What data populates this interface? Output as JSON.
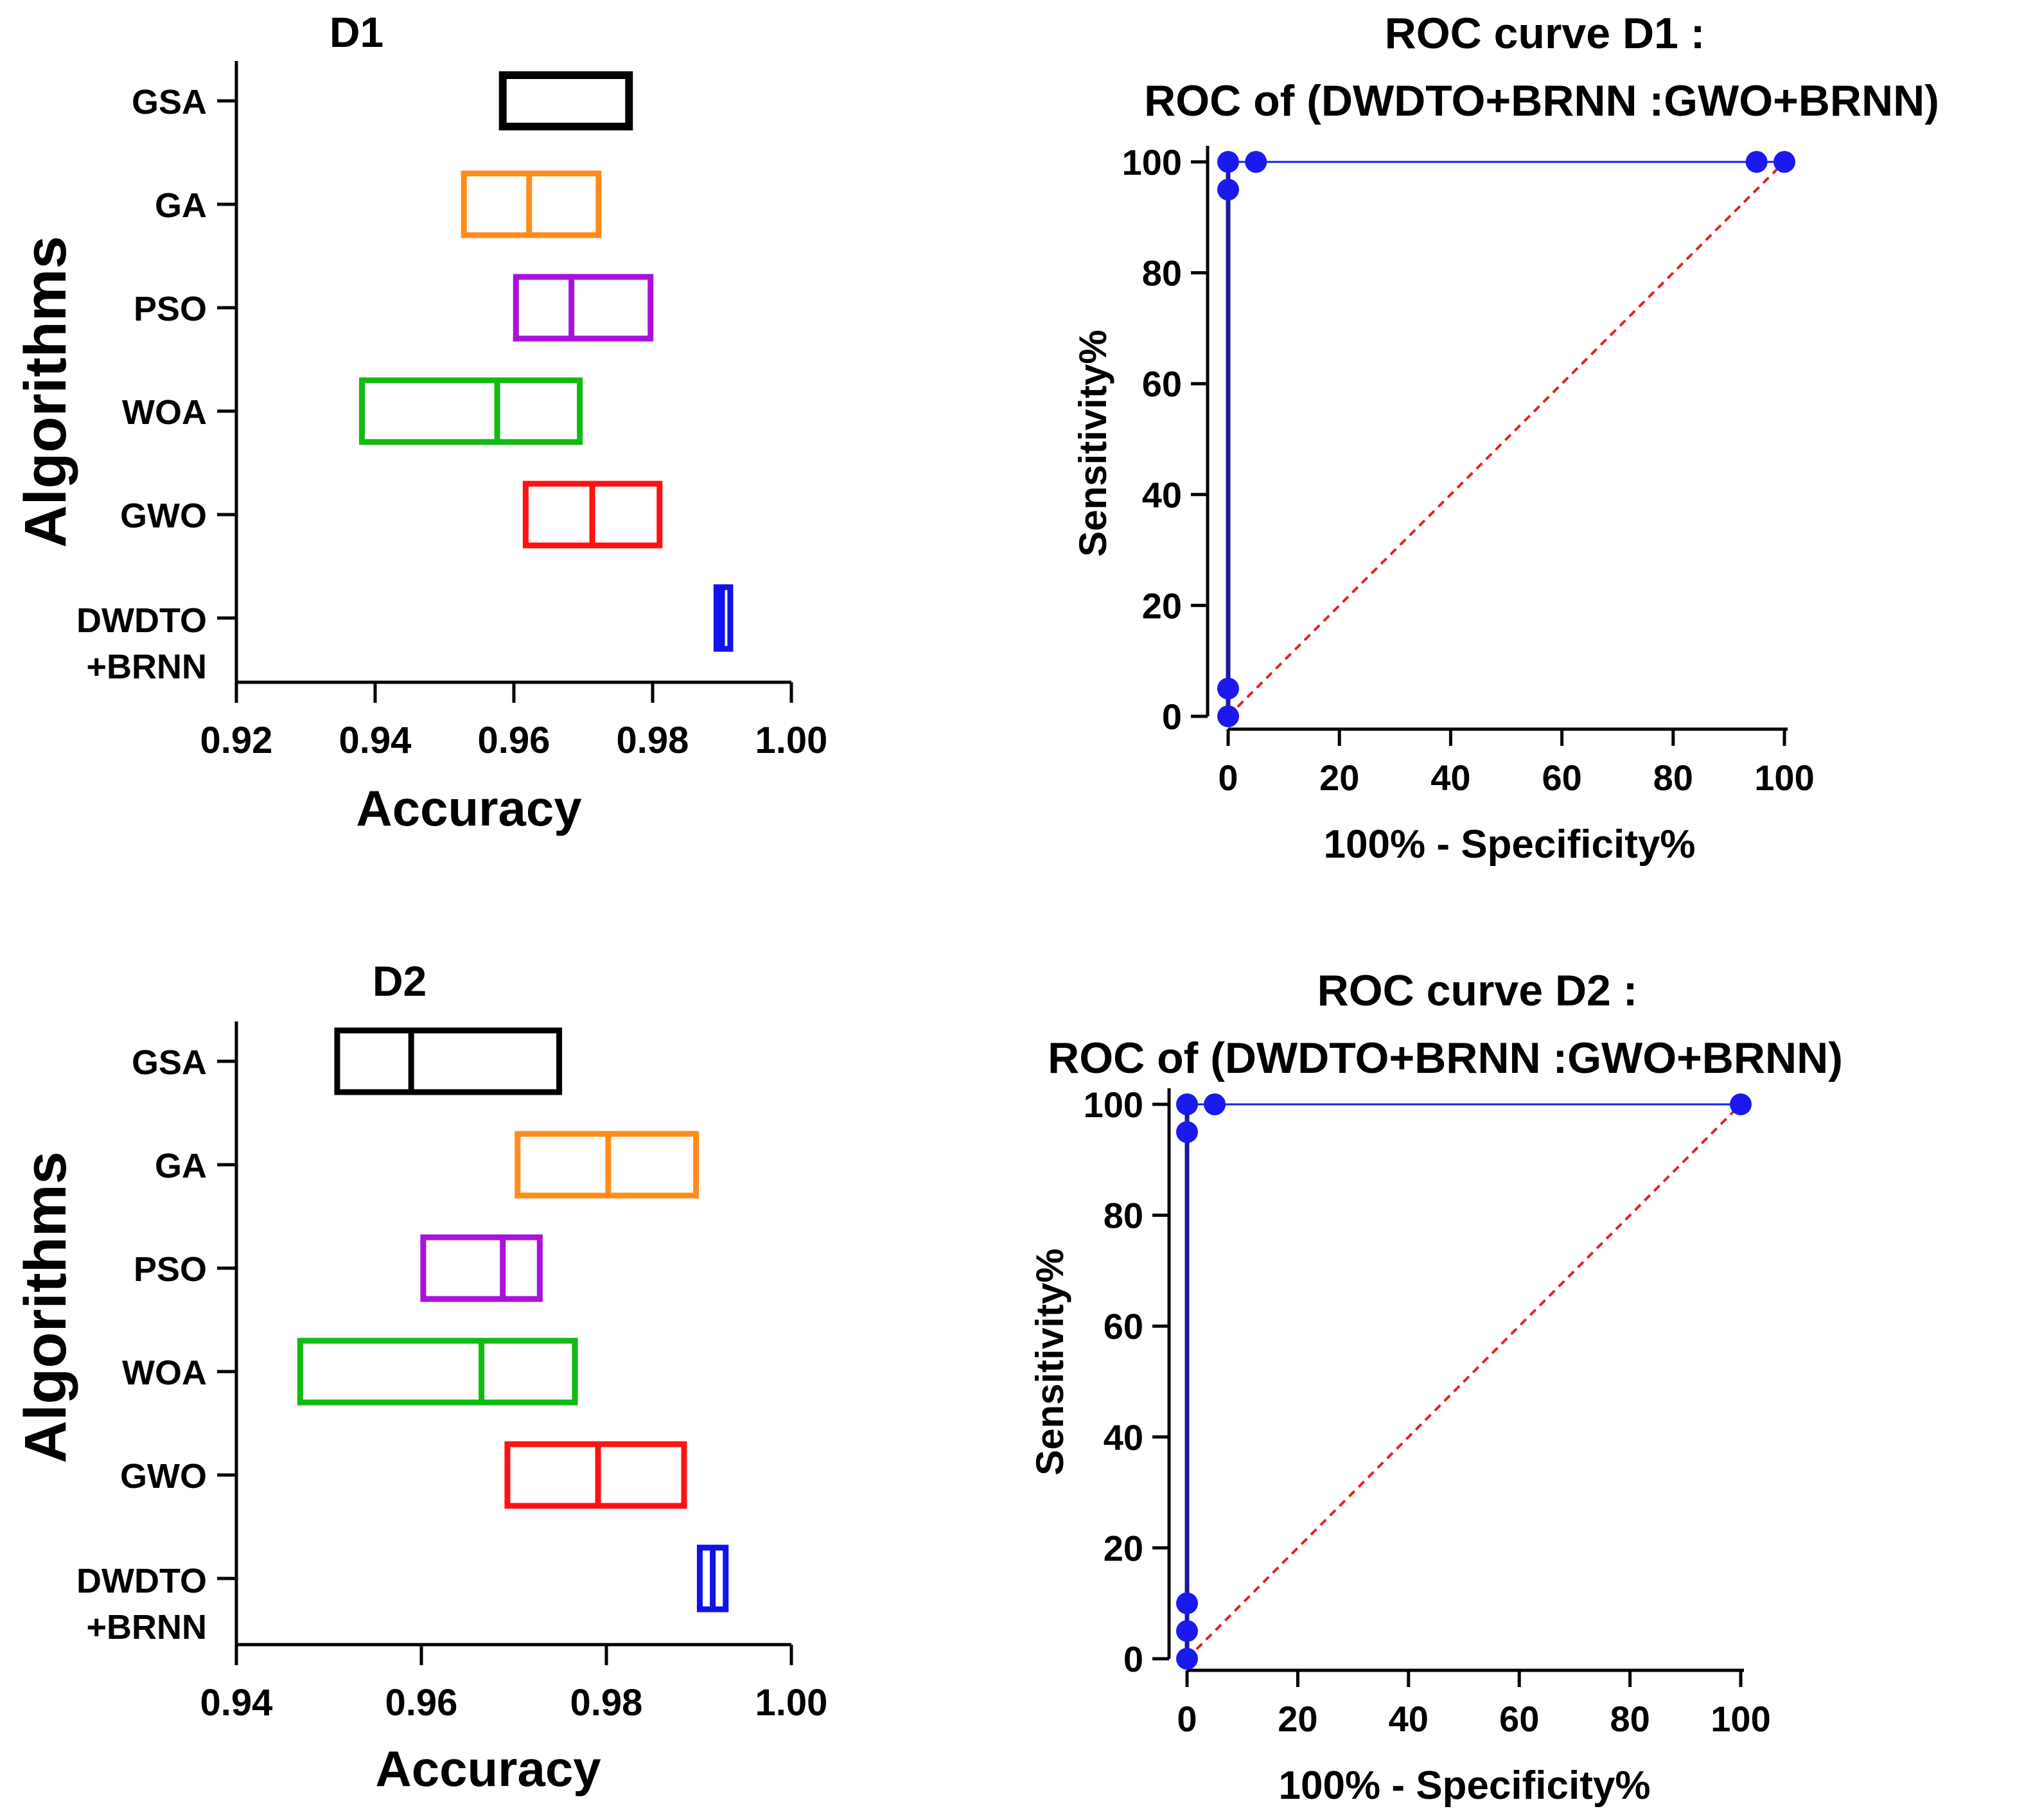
{
  "chart_data": [
    {
      "type": "box",
      "title": "D1",
      "xlabel": "Accuracy",
      "ylabel": "Algorithms",
      "xlim": [
        0.92,
        1.0
      ],
      "xticks": [
        "0.92",
        "0.94",
        "0.96",
        "0.98",
        "1.00"
      ],
      "series": [
        {
          "name": "GSA",
          "label_lines": [
            "GSA"
          ],
          "color": "#000000",
          "q1": 0.9584,
          "median": 0.9584,
          "q3": 0.9766
        },
        {
          "name": "GA",
          "label_lines": [
            "GA"
          ],
          "color": "#ff8c1a",
          "q1": 0.9528,
          "median": 0.9622,
          "q3": 0.9722
        },
        {
          "name": "PSO",
          "label_lines": [
            "PSO"
          ],
          "color": "#aa11dd",
          "q1": 0.9603,
          "median": 0.9683,
          "q3": 0.9797
        },
        {
          "name": "WOA",
          "label_lines": [
            "WOA"
          ],
          "color": "#11bb11",
          "q1": 0.9381,
          "median": 0.9576,
          "q3": 0.9695
        },
        {
          "name": "GWO",
          "label_lines": [
            "GWO"
          ],
          "color": "#ff1111",
          "q1": 0.9617,
          "median": 0.9713,
          "q3": 0.981
        },
        {
          "name": "DWDTO+BRNN",
          "label_lines": [
            "DWDTO",
            "+BRNN"
          ],
          "color": "#1111ee",
          "q1": 0.9892,
          "median": 0.99,
          "q3": 0.9912
        }
      ]
    },
    {
      "type": "line",
      "title": "ROC curve D1 :",
      "subtitle": "ROC of (DWDTO+BRNN :GWO+BRNN)",
      "xlabel": "100% - Specificity%",
      "ylabel": "Sensitivity%",
      "xlim": [
        0,
        100
      ],
      "ylim": [
        0,
        100
      ],
      "xticks": [
        "0",
        "20",
        "40",
        "60",
        "80",
        "100"
      ],
      "yticks": [
        "0",
        "20",
        "40",
        "60",
        "80",
        "100"
      ],
      "series": [
        {
          "name": "ROC",
          "color": "#1a1aee",
          "x": [
            0,
            0,
            0,
            0,
            5,
            95,
            100
          ],
          "y": [
            0,
            5,
            95,
            100,
            100,
            100,
            100
          ]
        },
        {
          "name": "Reference",
          "color": "#e82020",
          "style": "dashed",
          "x": [
            0,
            100
          ],
          "y": [
            0,
            100
          ]
        }
      ]
    },
    {
      "type": "box",
      "title": "D2",
      "xlabel": "Accuracy",
      "ylabel": "Algorithms",
      "xlim": [
        0.94,
        1.0
      ],
      "xticks": [
        "0.94",
        "0.96",
        "0.98",
        "1.00"
      ],
      "series": [
        {
          "name": "GSA",
          "label_lines": [
            "GSA"
          ],
          "color": "#000000",
          "q1": 0.9509,
          "median": 0.9589,
          "q3": 0.9749
        },
        {
          "name": "GA",
          "label_lines": [
            "GA"
          ],
          "color": "#ff8c1a",
          "q1": 0.9704,
          "median": 0.9802,
          "q3": 0.9897
        },
        {
          "name": "PSO",
          "label_lines": [
            "PSO"
          ],
          "color": "#aa11dd",
          "q1": 0.9602,
          "median": 0.9688,
          "q3": 0.9728
        },
        {
          "name": "WOA",
          "label_lines": [
            "WOA"
          ],
          "color": "#11bb11",
          "q1": 0.9469,
          "median": 0.9665,
          "q3": 0.9766
        },
        {
          "name": "GWO",
          "label_lines": [
            "GWO"
          ],
          "color": "#ff1111",
          "q1": 0.9693,
          "median": 0.9791,
          "q3": 0.9884
        },
        {
          "name": "DWDTO+BRNN",
          "label_lines": [
            "DWDTO",
            "+BRNN"
          ],
          "color": "#1111ee",
          "q1": 0.9901,
          "median": 0.9915,
          "q3": 0.9929
        }
      ]
    },
    {
      "type": "line",
      "title": "ROC curve D2 :",
      "subtitle": "ROC of (DWDTO+BRNN :GWO+BRNN)",
      "xlabel": "100% - Specificity%",
      "ylabel": "Sensitivity%",
      "xlim": [
        0,
        100
      ],
      "ylim": [
        0,
        100
      ],
      "xticks": [
        "0",
        "20",
        "40",
        "60",
        "80",
        "100"
      ],
      "yticks": [
        "0",
        "20",
        "40",
        "60",
        "80",
        "100"
      ],
      "series": [
        {
          "name": "ROC",
          "color": "#1a1aee",
          "x": [
            0,
            0,
            0,
            0,
            0,
            5,
            100
          ],
          "y": [
            0,
            5,
            10,
            95,
            100,
            100,
            100
          ]
        },
        {
          "name": "Reference",
          "color": "#e82020",
          "style": "dashed",
          "x": [
            0,
            100
          ],
          "y": [
            0,
            100
          ]
        }
      ]
    }
  ]
}
